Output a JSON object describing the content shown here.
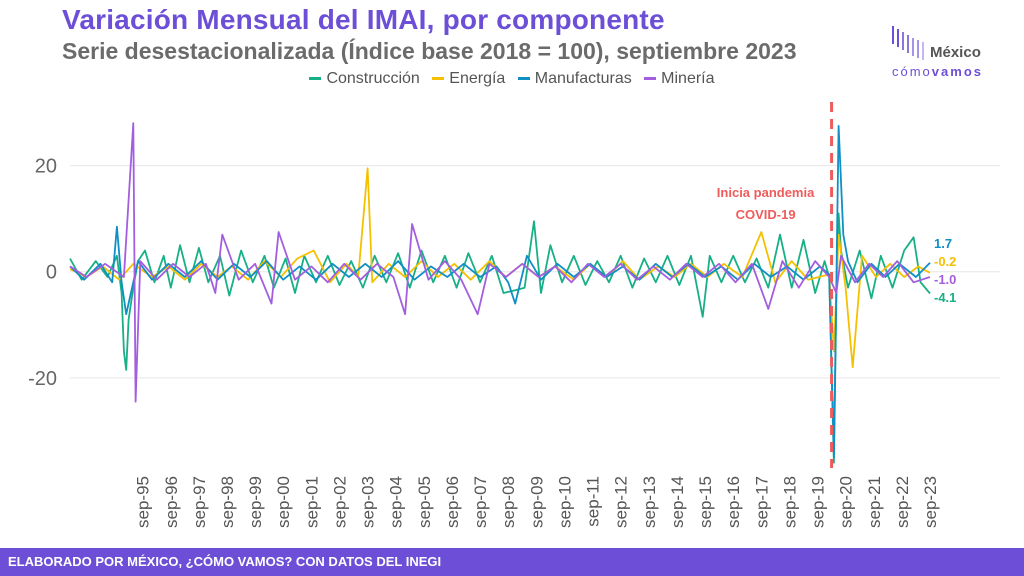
{
  "header": {
    "title": "Variación Mensual del IMAI, por componente",
    "subtitle": "Serie desestacionalizada (Índice base 2018 = 100), septiembre 2023"
  },
  "logo": {
    "word": "México",
    "sub_light": "cómo",
    "sub_bold": "vamos"
  },
  "footer": {
    "text": "ELABORADO POR MÉXICO, ¿CÓMO VAMOS? CON DATOS DEL INEGI"
  },
  "colors": {
    "construccion": "#17b086",
    "energia": "#f5c000",
    "manufacturas": "#0f8fc4",
    "mineria": "#a35ee0",
    "pandemia": "#ef5b5b",
    "grid": "#e6e6e6"
  },
  "chart_data": {
    "type": "line",
    "title": "Variación Mensual del IMAI, por componente",
    "subtitle": "Serie desestacionalizada (Índice base 2018 = 100), septiembre 2023",
    "x_start": "1993-02",
    "x_end": "2023-09",
    "xticks": [
      "sep-95",
      "sep-96",
      "sep-97",
      "sep-98",
      "sep-99",
      "sep-00",
      "sep-01",
      "sep-02",
      "sep-03",
      "sep-04",
      "sep-05",
      "sep-06",
      "sep-07",
      "sep-08",
      "sep-09",
      "sep-10",
      "sep-11",
      "sep-12",
      "sep-13",
      "sep-14",
      "sep-15",
      "sep-16",
      "sep-17",
      "sep-18",
      "sep-19",
      "sep-20",
      "sep-21",
      "sep-22",
      "sep-23"
    ],
    "yticks": [
      -20,
      0,
      20
    ],
    "ylim": [
      -37,
      32
    ],
    "grid": true,
    "legend_position": "top",
    "annotation": {
      "text_line1": "Inicia pandemia",
      "text_line2": "COVID-19",
      "x": "2020-03"
    },
    "series": [
      {
        "name": "Construcción",
        "color": "#17b086",
        "last_label": "-4.1",
        "points": [
          [
            "1993-02",
            2.5
          ],
          [
            "1993-07",
            -1.5
          ],
          [
            "1994-01",
            2
          ],
          [
            "1994-06",
            -1
          ],
          [
            "1994-10",
            3
          ],
          [
            "1994-12",
            -4
          ],
          [
            "1995-01",
            -15
          ],
          [
            "1995-02",
            -18.5
          ],
          [
            "1995-03",
            -9
          ],
          [
            "1995-05",
            -3
          ],
          [
            "1995-07",
            2
          ],
          [
            "1995-10",
            4
          ],
          [
            "1996-02",
            -2
          ],
          [
            "1996-06",
            3
          ],
          [
            "1996-09",
            -3
          ],
          [
            "1997-01",
            5
          ],
          [
            "1997-05",
            -2
          ],
          [
            "1997-09",
            4.5
          ],
          [
            "1998-01",
            -2
          ],
          [
            "1998-06",
            3
          ],
          [
            "1998-10",
            -4.5
          ],
          [
            "1999-03",
            4
          ],
          [
            "1999-08",
            -2
          ],
          [
            "2000-01",
            3
          ],
          [
            "2000-05",
            -3
          ],
          [
            "2000-10",
            2.5
          ],
          [
            "2001-02",
            -4
          ],
          [
            "2001-06",
            3
          ],
          [
            "2001-11",
            -2
          ],
          [
            "2002-04",
            3
          ],
          [
            "2002-09",
            -2.5
          ],
          [
            "2003-02",
            2
          ],
          [
            "2003-07",
            -3
          ],
          [
            "2003-12",
            3
          ],
          [
            "2004-05",
            -2
          ],
          [
            "2004-10",
            3.5
          ],
          [
            "2005-03",
            -3
          ],
          [
            "2005-08",
            4
          ],
          [
            "2006-01",
            -2
          ],
          [
            "2006-06",
            3
          ],
          [
            "2006-11",
            -3
          ],
          [
            "2007-04",
            3.5
          ],
          [
            "2007-09",
            -2
          ],
          [
            "2008-02",
            3
          ],
          [
            "2008-07",
            -4
          ],
          [
            "2008-12",
            -3.5
          ],
          [
            "2009-04",
            -3
          ],
          [
            "2009-08",
            9.5
          ],
          [
            "2009-11",
            -4
          ],
          [
            "2010-03",
            5
          ],
          [
            "2010-08",
            -2
          ],
          [
            "2011-01",
            3
          ],
          [
            "2011-06",
            -2.5
          ],
          [
            "2011-11",
            2
          ],
          [
            "2012-04",
            -2
          ],
          [
            "2012-09",
            3
          ],
          [
            "2013-02",
            -3
          ],
          [
            "2013-07",
            2.5
          ],
          [
            "2013-12",
            -2
          ],
          [
            "2014-05",
            3
          ],
          [
            "2014-10",
            -2.5
          ],
          [
            "2015-03",
            3
          ],
          [
            "2015-08",
            -8.5
          ],
          [
            "2015-11",
            3
          ],
          [
            "2016-04",
            -2
          ],
          [
            "2016-09",
            3
          ],
          [
            "2017-02",
            -2
          ],
          [
            "2017-07",
            2.5
          ],
          [
            "2017-12",
            -3
          ],
          [
            "2018-05",
            7
          ],
          [
            "2018-10",
            -3
          ],
          [
            "2019-03",
            6
          ],
          [
            "2019-08",
            -4
          ],
          [
            "2019-12",
            2
          ],
          [
            "2020-02",
            -1
          ],
          [
            "2020-04",
            -36
          ],
          [
            "2020-05",
            -6
          ],
          [
            "2020-06",
            11
          ],
          [
            "2020-07",
            4
          ],
          [
            "2020-10",
            -3
          ],
          [
            "2021-03",
            4
          ],
          [
            "2021-08",
            -5
          ],
          [
            "2021-12",
            3
          ],
          [
            "2022-05",
            -3
          ],
          [
            "2022-10",
            4
          ],
          [
            "2023-02",
            6.5
          ],
          [
            "2023-05",
            -2
          ],
          [
            "2023-09",
            -4.1
          ]
        ]
      },
      {
        "name": "Energía",
        "color": "#f5c000",
        "last_label": "-0.2",
        "points": [
          [
            "1993-02",
            0.5
          ],
          [
            "1993-09",
            -1
          ],
          [
            "1994-04",
            1
          ],
          [
            "1994-11",
            -1.5
          ],
          [
            "1995-05",
            1.5
          ],
          [
            "1996-01",
            -1
          ],
          [
            "1996-08",
            1
          ],
          [
            "1997-03",
            -1.5
          ],
          [
            "1997-10",
            1.5
          ],
          [
            "1998-05",
            -1
          ],
          [
            "1998-11",
            1
          ],
          [
            "1999-06",
            -1.5
          ],
          [
            "2000-01",
            2
          ],
          [
            "2000-08",
            -1
          ],
          [
            "2001-03",
            2.5
          ],
          [
            "2001-10",
            4
          ],
          [
            "2002-05",
            -2
          ],
          [
            "2002-12",
            1.5
          ],
          [
            "2003-05",
            -1
          ],
          [
            "2003-09",
            19.5
          ],
          [
            "2003-11",
            -2
          ],
          [
            "2004-06",
            1.5
          ],
          [
            "2005-01",
            -1
          ],
          [
            "2005-08",
            2
          ],
          [
            "2006-03",
            -1
          ],
          [
            "2006-10",
            1.5
          ],
          [
            "2007-05",
            -1.5
          ],
          [
            "2008-01",
            2
          ],
          [
            "2008-08",
            -1
          ],
          [
            "2009-03",
            1.5
          ],
          [
            "2009-10",
            -1
          ],
          [
            "2010-05",
            1
          ],
          [
            "2011-01",
            -1.5
          ],
          [
            "2011-08",
            1.5
          ],
          [
            "2012-03",
            -1
          ],
          [
            "2012-10",
            2
          ],
          [
            "2013-05",
            -1.5
          ],
          [
            "2014-01",
            1
          ],
          [
            "2014-08",
            -1
          ],
          [
            "2015-03",
            1.5
          ],
          [
            "2015-10",
            -1
          ],
          [
            "2016-05",
            1.5
          ],
          [
            "2017-01",
            -1
          ],
          [
            "2017-09",
            7.5
          ],
          [
            "2018-03",
            -2
          ],
          [
            "2018-10",
            2
          ],
          [
            "2019-05",
            -1.5
          ],
          [
            "2020-02",
            -0.5
          ],
          [
            "2020-04",
            -15
          ],
          [
            "2020-06",
            7
          ],
          [
            "2020-09",
            -3
          ],
          [
            "2020-12",
            -18
          ],
          [
            "2021-04",
            3
          ],
          [
            "2021-10",
            -1
          ],
          [
            "2022-04",
            1.5
          ],
          [
            "2022-10",
            -1
          ],
          [
            "2023-04",
            1
          ],
          [
            "2023-09",
            -0.2
          ]
        ]
      },
      {
        "name": "Manufacturas",
        "color": "#0f8fc4",
        "last_label": "1.7",
        "points": [
          [
            "1993-02",
            1
          ],
          [
            "1993-08",
            -1.5
          ],
          [
            "1994-03",
            1.5
          ],
          [
            "1994-08",
            -2
          ],
          [
            "1994-10",
            8.5
          ],
          [
            "1994-12",
            -2
          ],
          [
            "1995-02",
            -8
          ],
          [
            "1995-04",
            -4
          ],
          [
            "1995-07",
            2
          ],
          [
            "1996-01",
            -1.5
          ],
          [
            "1996-08",
            1.5
          ],
          [
            "1997-03",
            -1
          ],
          [
            "1997-10",
            2
          ],
          [
            "1998-05",
            -1.5
          ],
          [
            "1998-12",
            1.5
          ],
          [
            "1999-07",
            -1
          ],
          [
            "2000-02",
            2
          ],
          [
            "2000-09",
            -1.5
          ],
          [
            "2001-04",
            1
          ],
          [
            "2001-11",
            -1.5
          ],
          [
            "2002-06",
            1.5
          ],
          [
            "2003-01",
            -1
          ],
          [
            "2003-08",
            1.5
          ],
          [
            "2004-03",
            -1
          ],
          [
            "2004-10",
            2
          ],
          [
            "2005-05",
            -1.5
          ],
          [
            "2005-12",
            1
          ],
          [
            "2006-07",
            -1
          ],
          [
            "2007-02",
            1.5
          ],
          [
            "2007-09",
            -1
          ],
          [
            "2008-04",
            1
          ],
          [
            "2008-09",
            -2
          ],
          [
            "2008-12",
            -6
          ],
          [
            "2009-05",
            3
          ],
          [
            "2009-11",
            -1.5
          ],
          [
            "2010-06",
            1.5
          ],
          [
            "2011-01",
            -1
          ],
          [
            "2011-08",
            1.5
          ],
          [
            "2012-03",
            -1
          ],
          [
            "2012-10",
            1
          ],
          [
            "2013-05",
            -1.5
          ],
          [
            "2013-12",
            1.5
          ],
          [
            "2014-07",
            -1
          ],
          [
            "2015-02",
            1.5
          ],
          [
            "2015-09",
            -1
          ],
          [
            "2016-04",
            1
          ],
          [
            "2016-11",
            -1.5
          ],
          [
            "2017-06",
            1.5
          ],
          [
            "2018-01",
            -1
          ],
          [
            "2018-08",
            1
          ],
          [
            "2019-03",
            -1.5
          ],
          [
            "2019-10",
            1
          ],
          [
            "2020-02",
            -0.5
          ],
          [
            "2020-04",
            -35
          ],
          [
            "2020-06",
            27.5
          ],
          [
            "2020-08",
            7
          ],
          [
            "2020-10",
            2
          ],
          [
            "2021-02",
            -2
          ],
          [
            "2021-08",
            1.5
          ],
          [
            "2022-02",
            -1
          ],
          [
            "2022-08",
            1.5
          ],
          [
            "2023-03",
            -1
          ],
          [
            "2023-09",
            1.7
          ]
        ]
      },
      {
        "name": "Minería",
        "color": "#a35ee0",
        "last_label": "-1.0",
        "points": [
          [
            "1993-02",
            1
          ],
          [
            "1993-09",
            -1
          ],
          [
            "1994-05",
            1.5
          ],
          [
            "1995-01",
            -1
          ],
          [
            "1995-05",
            28
          ],
          [
            "1995-06",
            -24.5
          ],
          [
            "1995-08",
            2
          ],
          [
            "1996-03",
            -1.5
          ],
          [
            "1996-10",
            1.5
          ],
          [
            "1997-05",
            -1
          ],
          [
            "1997-12",
            1.5
          ],
          [
            "1998-04",
            -4
          ],
          [
            "1998-07",
            7
          ],
          [
            "1999-02",
            -1.5
          ],
          [
            "1999-09",
            1.5
          ],
          [
            "2000-04",
            -6
          ],
          [
            "2000-07",
            7.5
          ],
          [
            "2001-02",
            -1.5
          ],
          [
            "2001-09",
            1
          ],
          [
            "2002-04",
            -2
          ],
          [
            "2002-11",
            1.5
          ],
          [
            "2003-06",
            -1.5
          ],
          [
            "2004-01",
            1.5
          ],
          [
            "2004-08",
            -1
          ],
          [
            "2005-01",
            -8
          ],
          [
            "2005-04",
            9
          ],
          [
            "2005-11",
            -1.5
          ],
          [
            "2006-06",
            2
          ],
          [
            "2007-01",
            -1.5
          ],
          [
            "2007-08",
            -8
          ],
          [
            "2008-01",
            1.5
          ],
          [
            "2008-08",
            -1
          ],
          [
            "2009-03",
            1.5
          ],
          [
            "2009-10",
            -1
          ],
          [
            "2010-05",
            1
          ],
          [
            "2010-12",
            -2
          ],
          [
            "2011-07",
            1.5
          ],
          [
            "2012-02",
            -1
          ],
          [
            "2012-09",
            1.5
          ],
          [
            "2013-04",
            -1.5
          ],
          [
            "2013-11",
            1
          ],
          [
            "2014-06",
            -1.5
          ],
          [
            "2015-01",
            1.5
          ],
          [
            "2015-08",
            -1
          ],
          [
            "2016-03",
            1.5
          ],
          [
            "2016-10",
            -2
          ],
          [
            "2017-05",
            1.5
          ],
          [
            "2017-12",
            -7
          ],
          [
            "2018-06",
            2
          ],
          [
            "2019-01",
            -3
          ],
          [
            "2019-08",
            2
          ],
          [
            "2020-02",
            -1
          ],
          [
            "2020-05",
            -4
          ],
          [
            "2020-07",
            3
          ],
          [
            "2021-01",
            -2
          ],
          [
            "2021-07",
            1.5
          ],
          [
            "2022-01",
            -1
          ],
          [
            "2022-07",
            2
          ],
          [
            "2023-02",
            -2
          ],
          [
            "2023-09",
            -1.0
          ]
        ]
      }
    ]
  }
}
